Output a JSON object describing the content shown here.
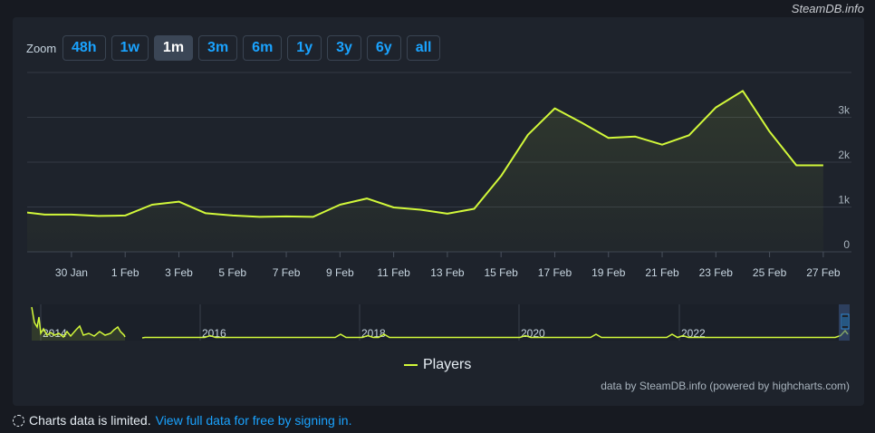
{
  "credit_top": "SteamDB.info",
  "zoom": {
    "label": "Zoom",
    "buttons": [
      "48h",
      "1w",
      "1m",
      "3m",
      "6m",
      "1y",
      "3y",
      "6y",
      "all"
    ],
    "active": "1m"
  },
  "legend": {
    "label": "Players",
    "color": "#d2f83a"
  },
  "credit_bottom": "data by SteamDB.info (powered by highcharts.com)",
  "notice": {
    "icon": "dashed-circle-icon",
    "text": "Charts data is limited.",
    "link": "View full data for free by signing in."
  },
  "chart_data": {
    "type": "area",
    "title": "",
    "xlabel": "",
    "ylabel": "",
    "ylim": [
      0,
      4000
    ],
    "y_ticks": [
      "0",
      "1k",
      "2k",
      "3k"
    ],
    "y_tick_values": [
      0,
      1000,
      2000,
      3000
    ],
    "x_tick_labels": [
      "30 Jan",
      "1 Feb",
      "3 Feb",
      "5 Feb",
      "7 Feb",
      "9 Feb",
      "11 Feb",
      "13 Feb",
      "15 Feb",
      "17 Feb",
      "19 Feb",
      "21 Feb",
      "23 Feb",
      "25 Feb",
      "27 Feb"
    ],
    "x_tick_days": [
      1,
      3,
      5,
      7,
      9,
      11,
      13,
      15,
      17,
      19,
      21,
      23,
      25,
      27,
      29
    ],
    "x_range_days": [
      -0.65,
      30.05
    ],
    "grid": true,
    "legend_position": "bottom-center",
    "series": [
      {
        "name": "Players",
        "color": "#d2f83a",
        "x": [
          "28 Jan",
          "29 Jan",
          "30 Jan",
          "31 Jan",
          "1 Feb",
          "2 Feb",
          "3 Feb",
          "4 Feb",
          "5 Feb",
          "6 Feb",
          "7 Feb",
          "8 Feb",
          "9 Feb",
          "10 Feb",
          "11 Feb",
          "12 Feb",
          "13 Feb",
          "14 Feb",
          "15 Feb",
          "16 Feb",
          "17 Feb",
          "18 Feb",
          "19 Feb",
          "20 Feb",
          "21 Feb",
          "22 Feb",
          "23 Feb",
          "24 Feb",
          "25 Feb",
          "26 Feb",
          "27 Feb"
        ],
        "values": [
          900,
          830,
          830,
          800,
          810,
          1050,
          1120,
          860,
          810,
          780,
          790,
          780,
          1050,
          1190,
          990,
          940,
          850,
          960,
          1690,
          2610,
          3200,
          2880,
          2540,
          2570,
          2390,
          2600,
          3220,
          3590,
          2680,
          1930,
          1930
        ]
      }
    ],
    "navigator": {
      "year_labels": [
        "2014",
        "2016",
        "2018",
        "2020",
        "2022"
      ]
    }
  }
}
